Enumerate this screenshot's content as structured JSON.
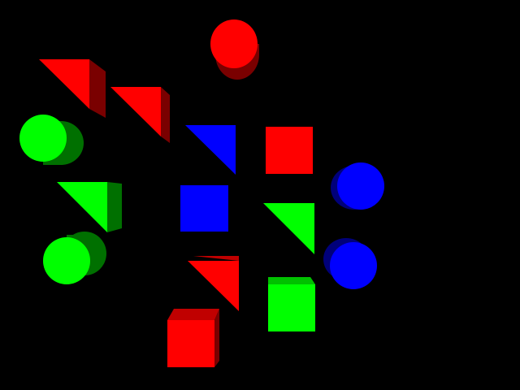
{
  "scene": {
    "background": "#000000",
    "colors": {
      "red": "#ff0000",
      "red_shade": "#7a0000",
      "red_top": "#c00000",
      "green": "#00ff00",
      "green_shade": "#007000",
      "green_top": "#00c000",
      "blue": "#0000ff",
      "blue_shade": "#00007a"
    },
    "objects": [
      {
        "name": "red-cylinder",
        "shape": "cylinder",
        "color": "red"
      },
      {
        "name": "red-wedge-1",
        "shape": "wedge",
        "color": "red"
      },
      {
        "name": "red-wedge-2",
        "shape": "wedge",
        "color": "red"
      },
      {
        "name": "green-cylinder-1",
        "shape": "cylinder",
        "color": "green"
      },
      {
        "name": "blue-wedge",
        "shape": "wedge",
        "color": "blue"
      },
      {
        "name": "red-cube-1",
        "shape": "cube",
        "color": "red"
      },
      {
        "name": "green-wedge-1",
        "shape": "wedge",
        "color": "green"
      },
      {
        "name": "blue-cube",
        "shape": "cube",
        "color": "blue"
      },
      {
        "name": "blue-cylinder-1",
        "shape": "cylinder",
        "color": "blue"
      },
      {
        "name": "green-wedge-2",
        "shape": "wedge",
        "color": "green"
      },
      {
        "name": "green-cylinder-2",
        "shape": "cylinder",
        "color": "green"
      },
      {
        "name": "blue-cylinder-2",
        "shape": "cylinder",
        "color": "blue"
      },
      {
        "name": "red-wedge-3",
        "shape": "wedge",
        "color": "red"
      },
      {
        "name": "green-cube",
        "shape": "cube",
        "color": "green"
      },
      {
        "name": "red-cube-2",
        "shape": "cube",
        "color": "red"
      }
    ]
  }
}
